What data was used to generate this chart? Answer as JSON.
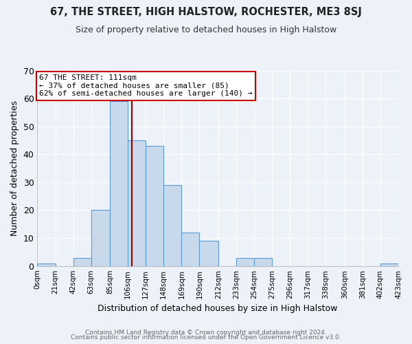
{
  "title": "67, THE STREET, HIGH HALSTOW, ROCHESTER, ME3 8SJ",
  "subtitle": "Size of property relative to detached houses in High Halstow",
  "bar_values": [
    1,
    0,
    3,
    20,
    59,
    45,
    43,
    29,
    12,
    9,
    0,
    3,
    3,
    0,
    0,
    0,
    0,
    0,
    0,
    1
  ],
  "bin_edges": [
    0,
    21,
    42,
    63,
    85,
    106,
    127,
    148,
    169,
    190,
    212,
    233,
    254,
    275,
    296,
    317,
    338,
    360,
    381,
    402,
    423
  ],
  "bar_color": "#c9d9ec",
  "bar_edge_color": "#5b9bd5",
  "property_line_x": 111,
  "property_line_color": "#8b0000",
  "xlabel": "Distribution of detached houses by size in High Halstow",
  "ylabel": "Number of detached properties",
  "ylim": [
    0,
    70
  ],
  "yticks": [
    0,
    10,
    20,
    30,
    40,
    50,
    60,
    70
  ],
  "xtick_labels": [
    "0sqm",
    "21sqm",
    "42sqm",
    "63sqm",
    "85sqm",
    "106sqm",
    "127sqm",
    "148sqm",
    "169sqm",
    "190sqm",
    "212sqm",
    "233sqm",
    "254sqm",
    "275sqm",
    "296sqm",
    "317sqm",
    "338sqm",
    "360sqm",
    "381sqm",
    "402sqm",
    "423sqm"
  ],
  "annotation_text": "67 THE STREET: 111sqm\n← 37% of detached houses are smaller (85)\n62% of semi-detached houses are larger (140) →",
  "annotation_box_color": "#ffffff",
  "annotation_box_edge_color": "#cc0000",
  "footnote1": "Contains HM Land Registry data © Crown copyright and database right 2024.",
  "footnote2": "Contains public sector information licensed under the Open Government Licence v3.0.",
  "bg_color": "#edf2f9",
  "plot_bg_color": "#edf2f9",
  "title_fontsize": 10.5,
  "subtitle_fontsize": 9,
  "grid_color": "#ffffff",
  "tick_label_fontsize": 7.5
}
